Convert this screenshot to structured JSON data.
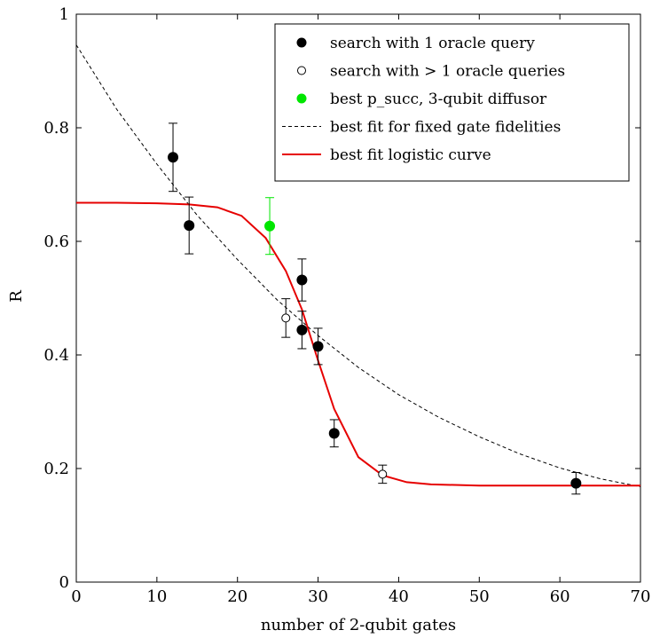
{
  "chart_data": {
    "type": "scatter",
    "title": "",
    "xlabel": "number of 2-qubit gates",
    "ylabel": "R",
    "xlim": [
      0,
      70
    ],
    "ylim": [
      0,
      1
    ],
    "x_ticks": [
      0,
      10,
      20,
      30,
      40,
      50,
      60,
      70
    ],
    "y_ticks": [
      0,
      0.2,
      0.4,
      0.6,
      0.8,
      1
    ],
    "x_tick_labels": [
      "0",
      "10",
      "20",
      "30",
      "40",
      "50",
      "60",
      "70"
    ],
    "y_tick_labels": [
      "0",
      "0.2",
      "0.4",
      "0.6",
      "0.8",
      "1"
    ],
    "grid": false,
    "legend_position": "top-right",
    "series": [
      {
        "name": "search with 1 oracle query",
        "kind": "points",
        "marker": "filled-circle",
        "color": "#000000",
        "points": [
          {
            "x": 12,
            "y": 0.748,
            "err": 0.06
          },
          {
            "x": 14,
            "y": 0.628,
            "err": 0.05
          },
          {
            "x": 28,
            "y": 0.532,
            "err": 0.037
          },
          {
            "x": 28,
            "y": 0.444,
            "err": 0.033
          },
          {
            "x": 30,
            "y": 0.415,
            "err": 0.032
          },
          {
            "x": 32,
            "y": 0.262,
            "err": 0.024
          },
          {
            "x": 62,
            "y": 0.174,
            "err": 0.019
          }
        ]
      },
      {
        "name": "search with > 1 oracle queries",
        "kind": "points",
        "marker": "open-circle",
        "color": "#000000",
        "points": [
          {
            "x": 26,
            "y": 0.465,
            "err": 0.034
          },
          {
            "x": 38,
            "y": 0.19,
            "err": 0.016
          }
        ]
      },
      {
        "name": "best p_succ, 3-qubit diffusor",
        "kind": "points",
        "marker": "filled-circle",
        "color": "#00e600",
        "points": [
          {
            "x": 24,
            "y": 0.627,
            "err": 0.05
          }
        ]
      },
      {
        "name": "best fit for fixed gate fidelities",
        "kind": "line",
        "style": "dashed",
        "color": "#000000",
        "points": [
          {
            "x": 0,
            "y": 0.946
          },
          {
            "x": 5,
            "y": 0.833
          },
          {
            "x": 10,
            "y": 0.736
          },
          {
            "x": 15,
            "y": 0.646
          },
          {
            "x": 20,
            "y": 0.568
          },
          {
            "x": 25,
            "y": 0.496
          },
          {
            "x": 30,
            "y": 0.434
          },
          {
            "x": 35,
            "y": 0.378
          },
          {
            "x": 40,
            "y": 0.33
          },
          {
            "x": 45,
            "y": 0.29
          },
          {
            "x": 50,
            "y": 0.256
          },
          {
            "x": 55,
            "y": 0.226
          },
          {
            "x": 60,
            "y": 0.201
          },
          {
            "x": 65,
            "y": 0.182
          },
          {
            "x": 70,
            "y": 0.168
          }
        ]
      },
      {
        "name": "best fit logistic curve",
        "kind": "line",
        "style": "solid",
        "color": "#e60000",
        "points": [
          {
            "x": 0,
            "y": 0.668
          },
          {
            "x": 5,
            "y": 0.668
          },
          {
            "x": 10,
            "y": 0.667
          },
          {
            "x": 14,
            "y": 0.665
          },
          {
            "x": 17.5,
            "y": 0.66
          },
          {
            "x": 20.5,
            "y": 0.645
          },
          {
            "x": 23.5,
            "y": 0.606
          },
          {
            "x": 26,
            "y": 0.548
          },
          {
            "x": 28,
            "y": 0.48
          },
          {
            "x": 30,
            "y": 0.39
          },
          {
            "x": 32,
            "y": 0.305
          },
          {
            "x": 35,
            "y": 0.22
          },
          {
            "x": 38,
            "y": 0.188
          },
          {
            "x": 41,
            "y": 0.176
          },
          {
            "x": 44,
            "y": 0.172
          },
          {
            "x": 50,
            "y": 0.17
          },
          {
            "x": 60,
            "y": 0.17
          },
          {
            "x": 70,
            "y": 0.17
          }
        ]
      }
    ]
  }
}
